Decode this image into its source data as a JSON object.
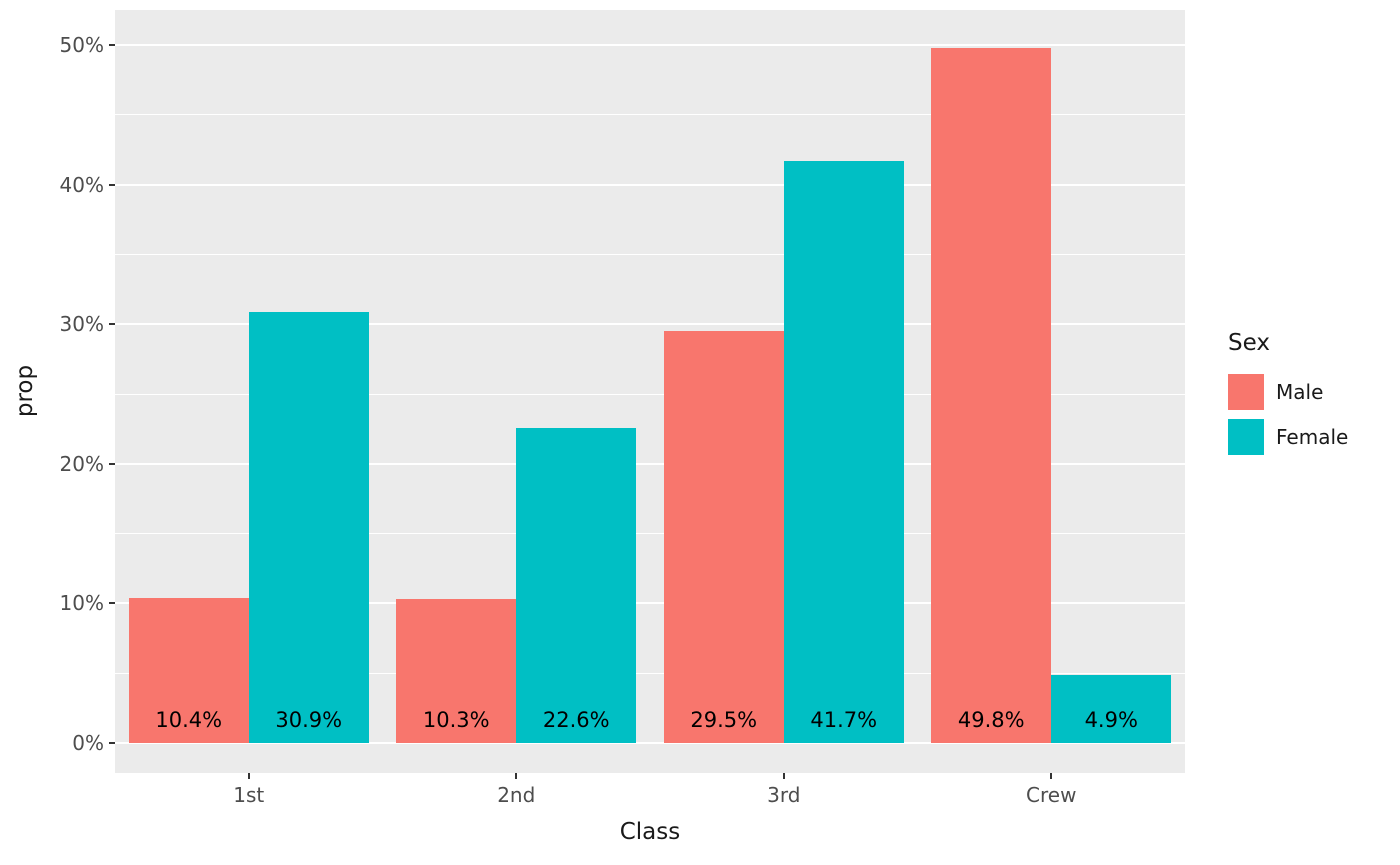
{
  "chart_data": {
    "type": "bar",
    "title": "",
    "xlabel": "Class",
    "ylabel": "prop",
    "categories": [
      "1st",
      "2nd",
      "3rd",
      "Crew"
    ],
    "series": [
      {
        "name": "Male",
        "color": "#F8766D",
        "values": [
          10.4,
          10.3,
          29.5,
          49.8
        ],
        "labels": [
          "10.4%",
          "10.3%",
          "29.5%",
          "49.8%"
        ]
      },
      {
        "name": "Female",
        "color": "#00BFC4",
        "values": [
          30.9,
          22.6,
          41.7,
          4.9
        ],
        "labels": [
          "30.9%",
          "22.6%",
          "41.7%",
          "4.9%"
        ]
      }
    ],
    "ylim": [
      0,
      50
    ],
    "y_ticks": [
      0,
      10,
      20,
      30,
      40,
      50
    ],
    "y_tick_labels": [
      "0%",
      "10%",
      "20%",
      "30%",
      "40%",
      "50%"
    ],
    "y_minor_ticks": [
      5,
      15,
      25,
      35,
      45
    ],
    "grid": true,
    "bar_mode": "dodge",
    "legend": {
      "title": "Sex",
      "position": "right"
    }
  },
  "colors": {
    "panel_bg": "#EBEBEB",
    "gridline": "#FFFFFF",
    "tick_text": "#4D4D4D",
    "axis_title": "#1A1A1A",
    "bar_label_text": "#000000",
    "male_fill": "#F8766D",
    "female_fill": "#00BFC4"
  }
}
